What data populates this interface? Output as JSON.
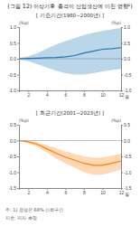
{
  "chart_data": [
    {
      "type": "line",
      "title": "(그림 12) 이상기후 충격이 산업생산에 미친 영향¹)",
      "subtitle": "[ 기준기간(1980~2000년) ]",
      "xlabel": "월",
      "ylabel": "(%p)",
      "y2label": "(%p)",
      "x": [
        1,
        2,
        3,
        4,
        5,
        6,
        7,
        8,
        9,
        10,
        11,
        12
      ],
      "series": [
        {
          "values": [
            0.0,
            0.01,
            0.02,
            0.03,
            0.04,
            0.06,
            0.1,
            0.18,
            0.24,
            0.3,
            0.32,
            0.35
          ],
          "upper": [
            0.02,
            0.08,
            0.18,
            0.32,
            0.45,
            0.56,
            0.65,
            0.75,
            0.82,
            0.88,
            0.93,
            0.98
          ],
          "lower": [
            -0.02,
            -0.08,
            -0.17,
            -0.28,
            -0.38,
            -0.46,
            -0.5,
            -0.5,
            -0.46,
            -0.4,
            -0.36,
            -0.32
          ]
        }
      ],
      "hlines": [
        0
      ],
      "xlim": [
        1,
        12
      ],
      "xticks": [
        2,
        4,
        6,
        8,
        10,
        12
      ],
      "ylim": [
        -1.0,
        1.0
      ],
      "yticks": [
        {
          "value": -1.0,
          "label": "-1.0"
        },
        -0.5,
        {
          "value": 0.0,
          "label": "0.0"
        },
        0.5,
        {
          "value": 1.0,
          "label": "1.0"
        }
      ],
      "y2lim": [
        -1.0,
        1.0
      ],
      "y2ticks": [
        {
          "value": -1.0,
          "label": "-1.0"
        },
        -0.5,
        {
          "value": 0.0,
          "label": "0.0"
        },
        0.5,
        {
          "value": 1.0,
          "label": "1.0"
        }
      ]
    },
    {
      "type": "line",
      "subtitle": "[ 최근기간(2001~2023년) ]",
      "xlabel": "월",
      "ylabel": "(%p)",
      "y2label": "(%p)",
      "x": [
        1,
        2,
        3,
        4,
        5,
        6,
        7,
        8,
        9,
        10,
        11,
        12
      ],
      "series": [
        {
          "values": [
            0.0,
            -0.04,
            -0.12,
            -0.26,
            -0.4,
            -0.52,
            -0.62,
            -0.72,
            -0.78,
            -0.78,
            -0.72,
            -0.65
          ],
          "upper": [
            0.01,
            -0.01,
            -0.06,
            -0.14,
            -0.24,
            -0.34,
            -0.42,
            -0.5,
            -0.54,
            -0.53,
            -0.48,
            -0.42
          ],
          "lower": [
            -0.01,
            -0.08,
            -0.2,
            -0.38,
            -0.57,
            -0.72,
            -0.86,
            -1.0,
            -1.08,
            -1.08,
            -1.0,
            -0.92
          ]
        }
      ],
      "hlines": [
        0
      ],
      "xlim": [
        1,
        12
      ],
      "xticks": [
        2,
        4,
        6,
        8,
        10,
        12
      ],
      "ylim": [
        -1.5,
        0.5
      ],
      "yticks": [
        -1.5,
        {
          "value": -1.0,
          "label": "-1.0"
        },
        -0.5,
        {
          "value": 0.0,
          "label": "0.0"
        },
        0.5
      ],
      "y2lim": [
        -1.5,
        0.5
      ],
      "y2ticks": [
        -1.5,
        {
          "value": -1.0,
          "label": "-1.0"
        },
        -0.5,
        {
          "value": 0.0,
          "label": "0.0"
        },
        0.5
      ],
      "annotations": [
        "주: 1) 음영은 68% 신뢰구간",
        "자료: 저자 추정"
      ]
    }
  ]
}
